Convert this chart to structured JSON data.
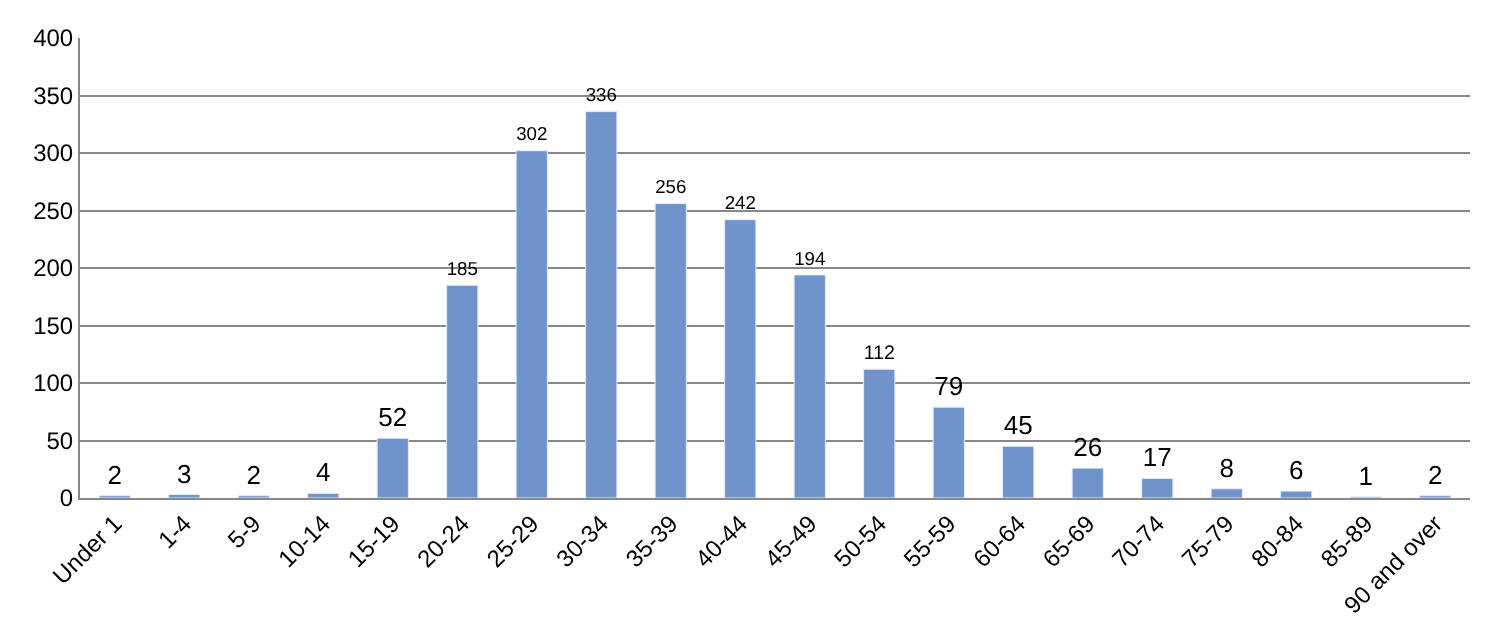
{
  "chart_data": {
    "type": "bar",
    "categories": [
      "Under 1",
      "1-4",
      "5-9",
      "10-14",
      "15-19",
      "20-24",
      "25-29",
      "30-34",
      "35-39",
      "40-44",
      "45-49",
      "50-54",
      "55-59",
      "60-64",
      "65-69",
      "70-74",
      "75-79",
      "80-84",
      "85-89",
      "90 and over"
    ],
    "values": [
      2,
      3,
      2,
      4,
      52,
      185,
      302,
      336,
      256,
      242,
      194,
      112,
      79,
      45,
      26,
      17,
      8,
      6,
      1,
      2
    ],
    "color": "#7093cc",
    "ylim": [
      0,
      400
    ],
    "yticks": [
      0,
      50,
      100,
      150,
      200,
      250,
      300,
      350,
      400
    ],
    "grid": "y",
    "data_labels": true,
    "legend": false
  }
}
